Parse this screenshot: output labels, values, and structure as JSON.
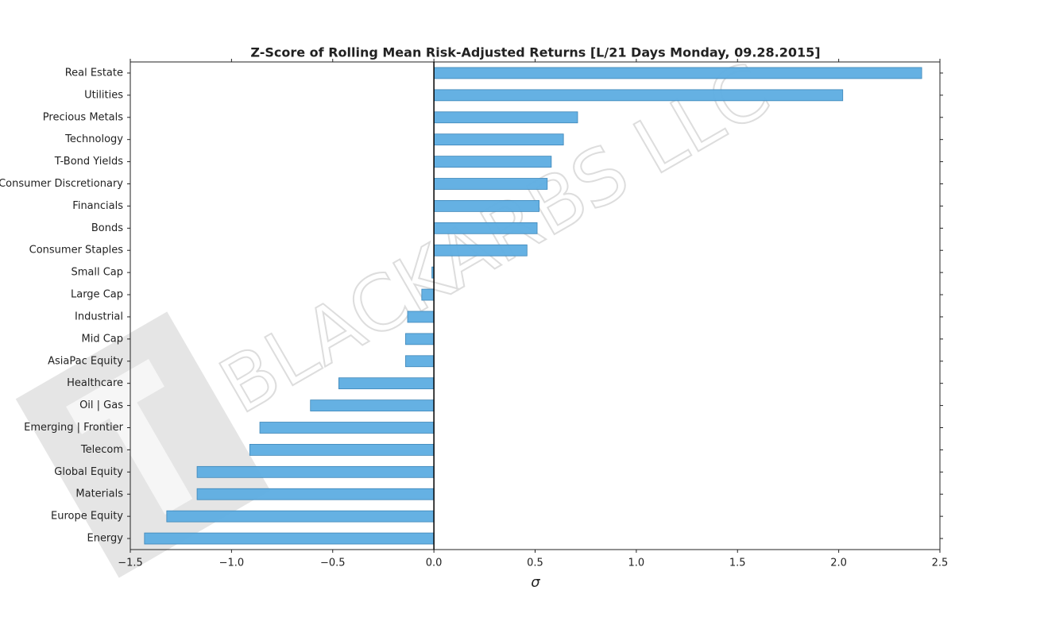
{
  "chart_data": {
    "type": "barh",
    "title": "Z-Score of Rolling Mean Risk-Adjusted Returns [L/21 Days Monday, 09.28.2015]",
    "x_label": "σ",
    "watermark": "BLACKARBS LLC",
    "categories": [
      "Real Estate",
      "Utilities",
      "Precious Metals",
      "Technology",
      "T-Bond Yields",
      "Consumer Discretionary",
      "Financials",
      "Bonds",
      "Consumer Staples",
      "Small Cap",
      "Large Cap",
      "Industrial",
      "Mid Cap",
      "AsiaPac Equity",
      "Healthcare",
      "Oil | Gas",
      "Emerging | Frontier",
      "Telecom",
      "Global Equity",
      "Materials",
      "Europe Equity",
      "Energy"
    ],
    "values": [
      2.41,
      2.02,
      0.71,
      0.64,
      0.58,
      0.56,
      0.52,
      0.51,
      0.46,
      -0.01,
      -0.06,
      -0.13,
      -0.14,
      -0.14,
      -0.47,
      -0.61,
      -0.86,
      -0.91,
      -1.17,
      -1.17,
      -1.32,
      -1.43
    ],
    "color": "#5dade2",
    "xlim": [
      -1.5,
      2.5
    ],
    "xticks": [
      {
        "value": -1.5,
        "label": "−1.5"
      },
      {
        "value": -1.0,
        "label": "−1.0"
      },
      {
        "value": -0.5,
        "label": "−0.5"
      },
      {
        "value": 0.0,
        "label": "0.0"
      },
      0.5,
      {
        "value": 1.0,
        "label": "1.0"
      },
      1.5,
      {
        "value": 2.0,
        "label": "2.0"
      },
      2.5
    ]
  }
}
